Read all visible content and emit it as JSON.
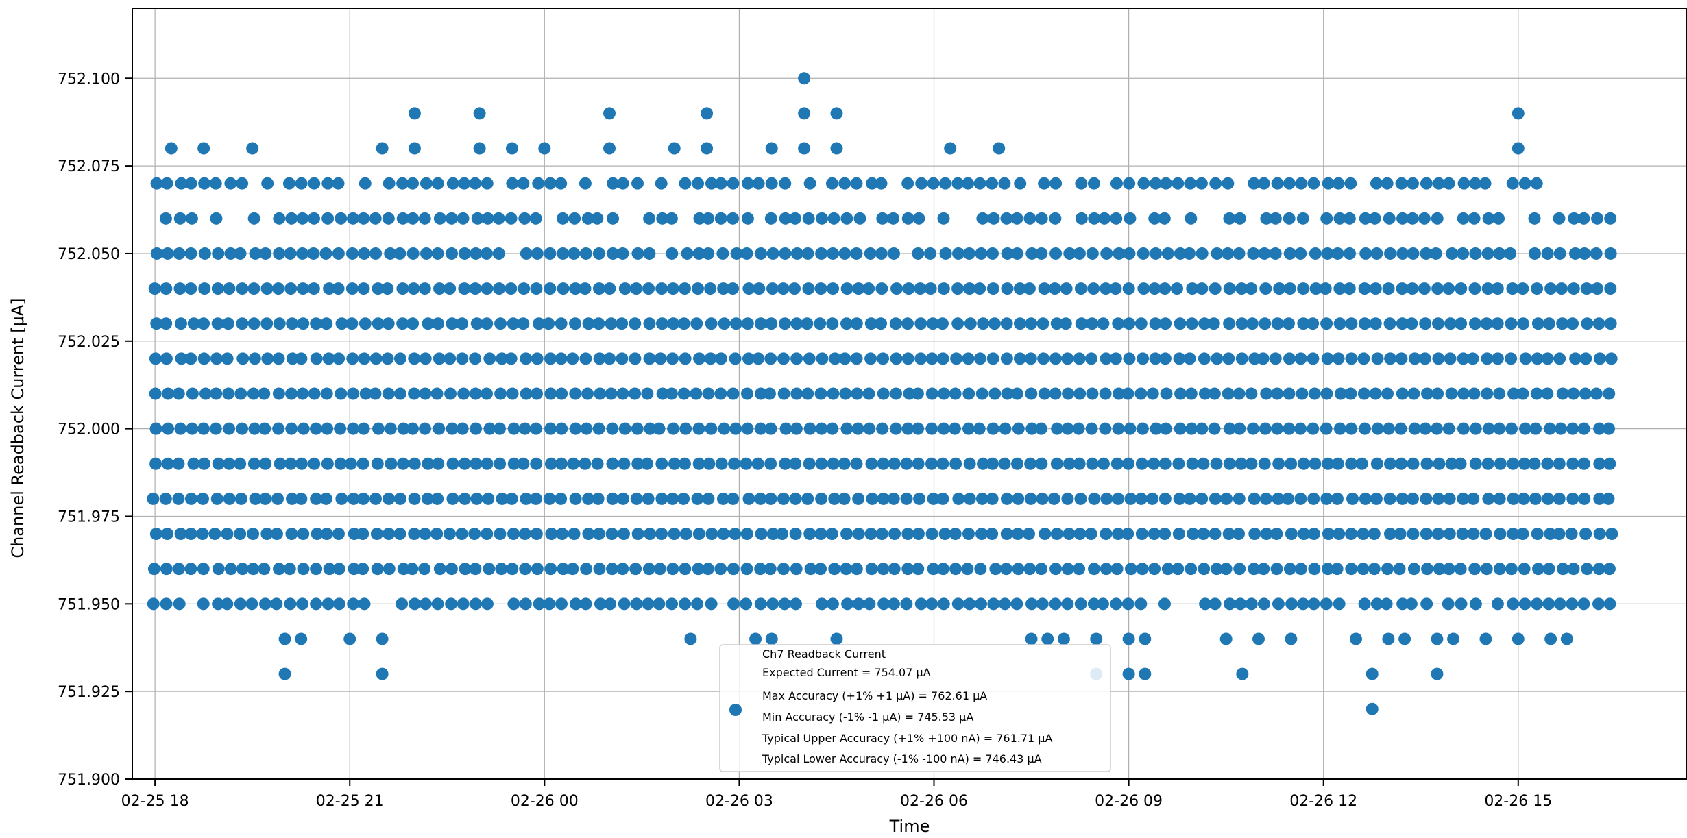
{
  "chart_data": {
    "type": "scatter",
    "title": "",
    "xlabel": "Time",
    "ylabel": "Channel Readback Current [$\\mu$A]",
    "ylabel_display": "Channel Readback Current [μA]",
    "xlim_hours": [
      -0.35,
      23.6
    ],
    "ylim": [
      751.9,
      752.12
    ],
    "x_start": "02-25 18:00",
    "x_end": "02-26 16:35",
    "grid": true,
    "marker_color": "#1f77b4",
    "x_ticks": [
      {
        "label": "02-25 18",
        "hours": 0
      },
      {
        "label": "02-25 21",
        "hours": 3
      },
      {
        "label": "02-26 00",
        "hours": 6
      },
      {
        "label": "02-26 03",
        "hours": 9
      },
      {
        "label": "02-26 06",
        "hours": 12
      },
      {
        "label": "02-26 09",
        "hours": 15
      },
      {
        "label": "02-26 12",
        "hours": 18
      },
      {
        "label": "02-26 15",
        "hours": 21
      }
    ],
    "y_ticks": [
      751.9,
      751.925,
      751.95,
      751.975,
      752.0,
      752.025,
      752.05,
      752.075,
      752.1
    ],
    "y_tick_labels": [
      "751.900",
      "751.925",
      "751.950",
      "751.975",
      "752.000",
      "752.025",
      "752.050",
      "752.075",
      "752.100"
    ],
    "series": [
      {
        "name": "Ch7 Readback Current",
        "levels": [
          {
            "y": 752.1,
            "times": [
              "02-26 04:00"
            ]
          },
          {
            "y": 752.09,
            "times": [
              "02-25 22:00",
              "02-25 23:00",
              "02-26 01:00",
              "02-26 02:30",
              "02-26 04:00",
              "02-26 04:30",
              "02-26 15:00"
            ]
          },
          {
            "y": 752.08,
            "times": [
              "02-25 18:15",
              "02-25 18:45",
              "02-25 19:30",
              "02-25 21:30",
              "02-25 22:00",
              "02-25 23:00",
              "02-25 23:30",
              "02-26 00:00",
              "02-26 01:00",
              "02-26 02:00",
              "02-26 02:30",
              "02-26 03:30",
              "02-26 04:00",
              "02-26 04:30",
              "02-26 06:15",
              "02-26 07:00",
              "02-26 15:00"
            ]
          },
          {
            "y": 752.07,
            "start": "02-25 18:00",
            "end": "02-26 15:30",
            "density": 0.75
          },
          {
            "y": 752.06,
            "start": "02-25 18:00",
            "end": "02-26 16:30",
            "density": 0.85
          },
          {
            "y": 752.05,
            "start": "02-25 18:00",
            "end": "02-26 16:35",
            "density": 0.95
          },
          {
            "y": 752.04,
            "start": "02-25 18:00",
            "end": "02-26 16:35",
            "density": 1.0
          },
          {
            "y": 752.03,
            "start": "02-25 18:00",
            "end": "02-26 16:35",
            "density": 1.0
          },
          {
            "y": 752.02,
            "start": "02-25 18:00",
            "end": "02-26 16:35",
            "density": 1.0
          },
          {
            "y": 752.01,
            "start": "02-25 18:00",
            "end": "02-26 16:35",
            "density": 1.0
          },
          {
            "y": 752.0,
            "start": "02-25 18:00",
            "end": "02-26 16:35",
            "density": 1.0
          },
          {
            "y": 751.99,
            "start": "02-25 18:00",
            "end": "02-26 16:35",
            "density": 1.0
          },
          {
            "y": 751.98,
            "start": "02-25 18:00",
            "end": "02-26 16:35",
            "density": 1.0
          },
          {
            "y": 751.97,
            "start": "02-25 18:00",
            "end": "02-26 16:35",
            "density": 1.0
          },
          {
            "y": 751.96,
            "start": "02-25 18:00",
            "end": "02-26 16:35",
            "density": 1.0
          },
          {
            "y": 751.95,
            "start": "02-25 18:00",
            "end": "02-26 16:35",
            "density": 0.85
          },
          {
            "y": 751.94,
            "times": [
              "02-25 20:00",
              "02-25 20:15",
              "02-25 21:00",
              "02-25 21:30",
              "02-26 02:15",
              "02-26 03:15",
              "02-26 03:30",
              "02-26 04:30",
              "02-26 07:30",
              "02-26 07:45",
              "02-26 08:00",
              "02-26 08:30",
              "02-26 09:00",
              "02-26 09:15",
              "02-26 10:30",
              "02-26 11:00",
              "02-26 11:30",
              "02-26 12:30",
              "02-26 13:00",
              "02-26 13:15",
              "02-26 13:45",
              "02-26 14:00",
              "02-26 14:30",
              "02-26 15:00",
              "02-26 15:30",
              "02-26 15:45"
            ]
          },
          {
            "y": 751.93,
            "times": [
              "02-25 20:00",
              "02-25 21:30",
              "02-26 08:30",
              "02-26 09:00",
              "02-26 09:15",
              "02-26 10:45",
              "02-26 12:45",
              "02-26 13:45"
            ]
          },
          {
            "y": 751.92,
            "times": [
              "02-26 12:45"
            ]
          }
        ]
      }
    ],
    "legend": {
      "placement": "lower center",
      "lines": [
        "Ch7 Readback Current",
        "Expected Current = 754.07 μA",
        "Max Accuracy (+1% +1 μA) = 762.61 μA",
        "Min Accuracy (-1% -1 μA) = 745.53 μA",
        "Typical Upper Accuracy (+1% +100 nA) = 761.71 μA",
        "Typical Lower Accuracy (-1% -100 nA) = 746.43 μA"
      ]
    }
  }
}
